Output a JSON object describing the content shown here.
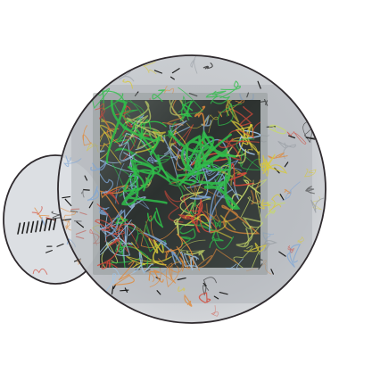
{
  "colors": {
    "background": "#ffffff",
    "outline": "#2f2a2e",
    "disc_fill": "#c9cbcf",
    "disc_inner": "#aeb3b8",
    "lobe_fill": "#dcdfe3",
    "square_dark": "#2e3331",
    "square_mid": "#4b524f",
    "square_edge": "#8c9392",
    "green": "#2fbf4a",
    "yellow": "#d8c93a",
    "orange": "#e08a3a",
    "blue": "#7fa6d6",
    "red": "#d44a3a",
    "dark": "#1e1e1e"
  }
}
